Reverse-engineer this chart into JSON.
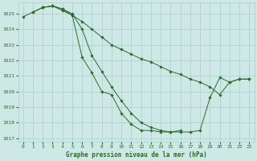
{
  "title": "Graphe pression niveau de la mer (hPa)",
  "background_color": "#cde8e5",
  "grid_color": "#aacfcc",
  "line_color": "#2d6a2d",
  "xlim": [
    -0.5,
    23.5
  ],
  "ylim": [
    1016.8,
    1025.7
  ],
  "yticks": [
    1017,
    1018,
    1019,
    1020,
    1021,
    1022,
    1023,
    1024,
    1025
  ],
  "xticks": [
    0,
    1,
    2,
    3,
    4,
    5,
    6,
    7,
    8,
    9,
    10,
    11,
    12,
    13,
    14,
    15,
    16,
    17,
    18,
    19,
    20,
    21,
    22,
    23
  ],
  "series": [
    {
      "x": [
        0,
        1,
        2,
        3,
        4,
        5,
        6,
        7,
        8,
        9,
        10,
        11,
        12,
        13,
        14,
        15,
        16,
        17,
        18,
        19,
        20,
        21,
        22,
        23
      ],
      "y": [
        1024.8,
        1025.1,
        1025.4,
        1025.5,
        1025.3,
        1025.0,
        1024.0,
        1022.3,
        1021.3,
        1020.3,
        1019.4,
        1018.6,
        1018.0,
        1017.7,
        1017.5,
        1017.4,
        1017.4,
        1017.4,
        1017.5,
        1019.6,
        1020.9,
        1020.6,
        1020.8,
        1020.8
      ]
    },
    {
      "x": [
        1,
        2,
        3,
        4,
        5,
        6,
        7,
        8,
        9,
        10,
        11,
        12,
        13,
        14,
        15,
        16
      ],
      "y": [
        1025.1,
        1025.4,
        1025.5,
        1025.3,
        1024.9,
        1022.2,
        1021.2,
        1020.0,
        1019.8,
        1018.6,
        1017.9,
        1017.5,
        1017.5,
        1017.4,
        1017.4,
        1017.5
      ]
    },
    {
      "x": [
        2,
        3,
        4,
        5,
        6,
        7,
        8,
        9,
        10,
        11,
        12,
        13,
        14,
        15,
        16,
        17,
        18,
        19,
        20,
        21,
        22,
        23
      ],
      "y": [
        1025.4,
        1025.5,
        1025.2,
        1024.9,
        1024.5,
        1024.0,
        1023.5,
        1023.0,
        1022.7,
        1022.4,
        1022.1,
        1021.9,
        1021.6,
        1021.3,
        1021.1,
        1020.8,
        1020.6,
        1020.3,
        1019.8,
        1020.6,
        1020.8,
        1020.8
      ]
    }
  ]
}
